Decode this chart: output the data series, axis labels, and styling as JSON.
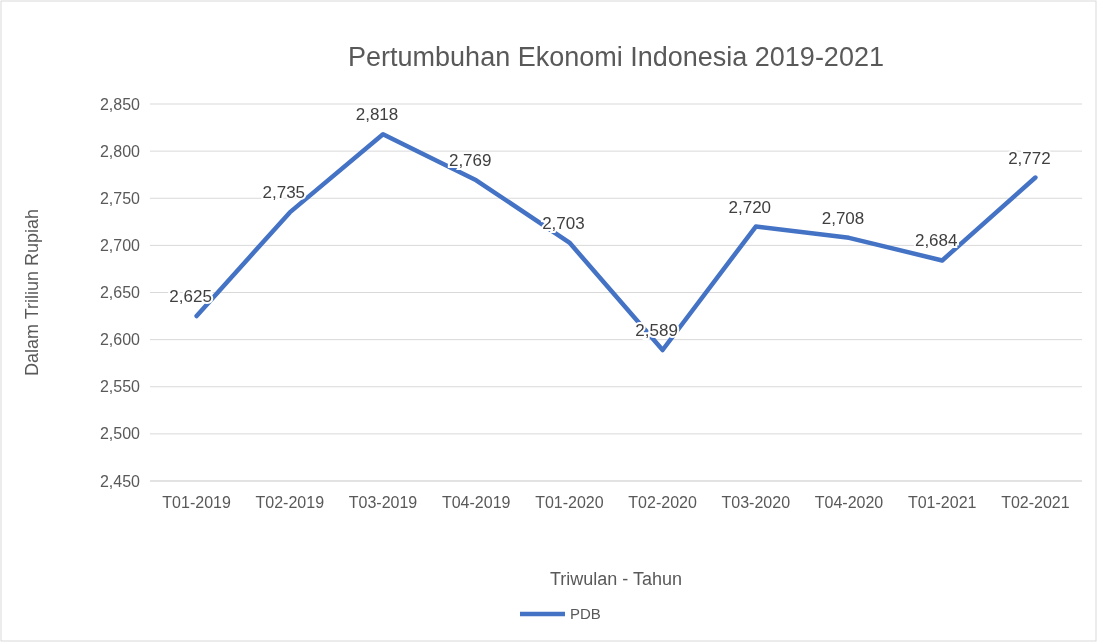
{
  "chart_data": {
    "type": "line",
    "title": "Pertumbuhan Ekonomi Indonesia 2019-2021",
    "xlabel": "Triwulan - Tahun",
    "ylabel": "Dalam Triliun Rupiah",
    "categories": [
      "T01-2019",
      "T02-2019",
      "T03-2019",
      "T04-2019",
      "T01-2020",
      "T02-2020",
      "T03-2020",
      "T04-2020",
      "T01-2021",
      "T02-2021"
    ],
    "series": [
      {
        "name": "PDB",
        "color": "#4472c4",
        "values": [
          2625,
          2735,
          2818,
          2769,
          2703,
          2589,
          2720,
          2708,
          2684,
          2772
        ],
        "value_labels": [
          "2,625",
          "2,735",
          "2,818",
          "2,769",
          "2,703",
          "2,589",
          "2,720",
          "2,708",
          "2,684",
          "2,772"
        ]
      }
    ],
    "ylim": [
      2450,
      2850
    ],
    "yticks": [
      {
        "value": 2450,
        "label": "2,450"
      },
      {
        "value": 2500,
        "label": "2,500"
      },
      {
        "value": 2550,
        "label": "2,550"
      },
      {
        "value": 2600,
        "label": "2,600"
      },
      {
        "value": 2650,
        "label": "2,650"
      },
      {
        "value": 2700,
        "label": "2,700"
      },
      {
        "value": 2750,
        "label": "2,750"
      },
      {
        "value": 2800,
        "label": "2,800"
      },
      {
        "value": 2850,
        "label": "2,850"
      }
    ],
    "grid": "y",
    "legend": "bottom",
    "marker": "none",
    "line_style": "solid"
  }
}
